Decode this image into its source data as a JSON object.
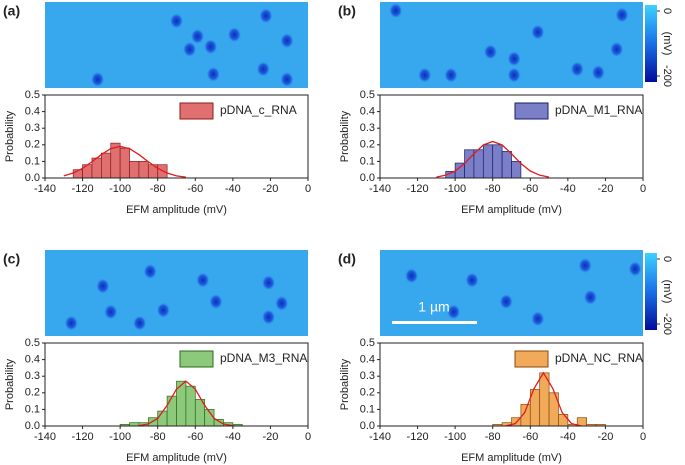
{
  "chart_data": [
    {
      "type": "histogram",
      "panel_label": "(a)",
      "name": "pDNA_c_RNA",
      "color": "#e07070",
      "edge_color": "#8b1a1a",
      "bins": [
        -125,
        -120,
        -115,
        -110,
        -105,
        -100,
        -95,
        -90,
        -85,
        -80,
        -75
      ],
      "values": [
        0.05,
        0.08,
        0.12,
        0.15,
        0.21,
        0.18,
        0.1,
        0.1,
        0.08,
        0.08
      ],
      "fit": {
        "color": "#e31a1c",
        "x": [
          -130,
          -125,
          -120,
          -115,
          -110,
          -105,
          -100,
          -95,
          -90,
          -85,
          -80,
          -75,
          -70,
          -65
        ],
        "values": [
          0.013,
          0.03,
          0.058,
          0.098,
          0.141,
          0.177,
          0.19,
          0.177,
          0.141,
          0.098,
          0.058,
          0.03,
          0.013,
          0.005
        ]
      },
      "xlabel": "EFM amplitude (mV)",
      "ylabel": "Probability",
      "xlim": [
        -140,
        0
      ],
      "xticks": [
        -140,
        -120,
        -100,
        -80,
        -60,
        -40,
        -20,
        0
      ],
      "ylim": [
        0,
        0.5
      ],
      "yticks": [
        {
          "value": 0,
          "label": "0.0"
        },
        0.1,
        0.2,
        0.3,
        0.4,
        0.5
      ]
    },
    {
      "type": "histogram",
      "panel_label": "(b)",
      "name": "pDNA_M1_RNA",
      "color": "#7a7fc8",
      "edge_color": "#1a1f6b",
      "bins": [
        -105,
        -100,
        -95,
        -90,
        -85,
        -80,
        -75,
        -70,
        -65
      ],
      "values": [
        0.04,
        0.09,
        0.17,
        0.17,
        0.2,
        0.2,
        0.16,
        0.1
      ],
      "fit": {
        "color": "#e31a1c",
        "x": [
          -110,
          -105,
          -100,
          -95,
          -90,
          -85,
          -80,
          -75,
          -70,
          -65,
          -60,
          -55,
          -50
        ],
        "values": [
          0.005,
          0.017,
          0.042,
          0.087,
          0.146,
          0.199,
          0.22,
          0.199,
          0.146,
          0.087,
          0.042,
          0.017,
          0.005
        ]
      },
      "xlabel": "EFM amplitude (mV)",
      "ylabel": "Probability",
      "xlim": [
        -140,
        0
      ],
      "xticks": [
        -140,
        -120,
        -100,
        -80,
        -60,
        -40,
        -20,
        0
      ],
      "ylim": [
        0,
        0.5
      ],
      "yticks": [
        {
          "value": 0,
          "label": "0.0"
        },
        0.1,
        0.2,
        0.3,
        0.4,
        0.5
      ],
      "colorbar": {
        "label": "(mV)",
        "lim": [
          -200,
          0
        ],
        "ticks": [
          0,
          -200
        ]
      }
    },
    {
      "type": "histogram",
      "panel_label": "(c)",
      "name": "pDNA_M3_RNA",
      "color": "#8cc97a",
      "edge_color": "#2a6b1a",
      "bins": [
        -100,
        -95,
        -90,
        -85,
        -80,
        -75,
        -70,
        -65,
        -60,
        -55,
        -50,
        -45,
        -40,
        -35
      ],
      "values": [
        0.01,
        0.02,
        0.02,
        0.05,
        0.09,
        0.18,
        0.27,
        0.24,
        0.16,
        0.1,
        0.04,
        0.02,
        0.01
      ],
      "fit": {
        "color": "#e31a1c",
        "x": [
          -90,
          -85,
          -80,
          -75,
          -70,
          -65,
          -60,
          -55,
          -50,
          -45,
          -40
        ],
        "values": [
          0.002,
          0.012,
          0.046,
          0.124,
          0.222,
          0.27,
          0.222,
          0.124,
          0.046,
          0.012,
          0.002
        ]
      },
      "xlabel": "EFM amplitude (mV)",
      "ylabel": "Probability",
      "xlim": [
        -140,
        0
      ],
      "xticks": [
        -140,
        -120,
        -100,
        -80,
        -60,
        -40,
        -20,
        0
      ],
      "ylim": [
        0,
        0.5
      ],
      "yticks": [
        {
          "value": 0,
          "label": "0.0"
        },
        0.1,
        0.2,
        0.3,
        0.4,
        0.5
      ]
    },
    {
      "type": "histogram",
      "panel_label": "(d)",
      "name": "pDNA_NC_RNA",
      "color": "#f0aa5a",
      "edge_color": "#8b4a0a",
      "bins": [
        -80,
        -75,
        -70,
        -65,
        -60,
        -55,
        -50,
        -45,
        -40,
        -35,
        -30,
        -25,
        -20
      ],
      "values": [
        0.01,
        0.02,
        0.05,
        0.13,
        0.22,
        0.32,
        0.2,
        0.07,
        0.01,
        0.05,
        0.01,
        0.01
      ],
      "fit": {
        "color": "#e31a1c",
        "x": [
          -73,
          -68,
          -63,
          -58,
          -53,
          -48,
          -43,
          -38,
          -33
        ],
        "values": [
          0.001,
          0.014,
          0.08,
          0.226,
          0.32,
          0.226,
          0.08,
          0.014,
          0.001
        ]
      },
      "xlabel": "EFM amplitude (mV)",
      "ylabel": "Probability",
      "xlim": [
        -140,
        0
      ],
      "xticks": [
        -140,
        -120,
        -100,
        -80,
        -60,
        -40,
        -20,
        0
      ],
      "ylim": [
        0,
        0.5
      ],
      "yticks": [
        {
          "value": 0,
          "label": "0.0"
        },
        0.1,
        0.2,
        0.3,
        0.4,
        0.5
      ],
      "scalebar_label": "1 µm",
      "colorbar": {
        "label": "(mV)",
        "lim": [
          -200,
          0
        ],
        "ticks": [
          0,
          -200
        ]
      }
    }
  ]
}
